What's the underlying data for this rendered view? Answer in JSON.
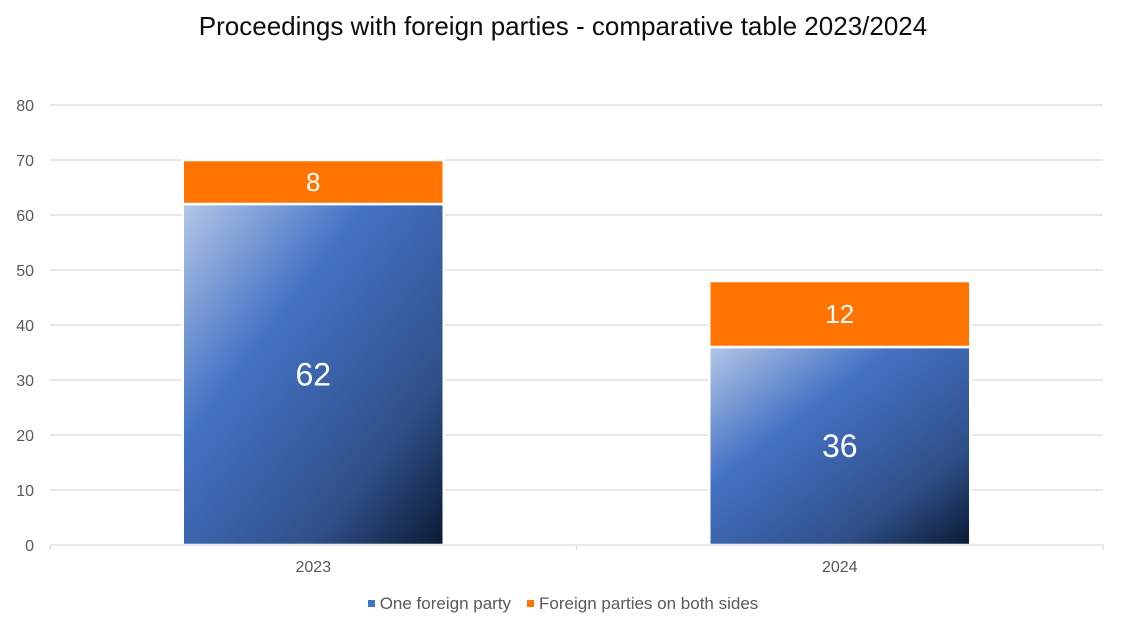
{
  "chart_data": {
    "type": "bar",
    "stacked": true,
    "title": "Proceedings with foreign parties - comparative table 2023/2024",
    "categories": [
      "2023",
      "2024"
    ],
    "series": [
      {
        "name": "One foreign party",
        "values": [
          62,
          36
        ],
        "color": "#4472c4"
      },
      {
        "name": "Foreign parties on both sides",
        "values": [
          8,
          12
        ],
        "color": "#ff7300"
      }
    ],
    "ylim": [
      0,
      80
    ],
    "yticks": [
      "0",
      "10",
      "20",
      "30",
      "40",
      "50",
      "60",
      "70",
      "80"
    ],
    "grid": true,
    "legend_position": "bottom"
  }
}
